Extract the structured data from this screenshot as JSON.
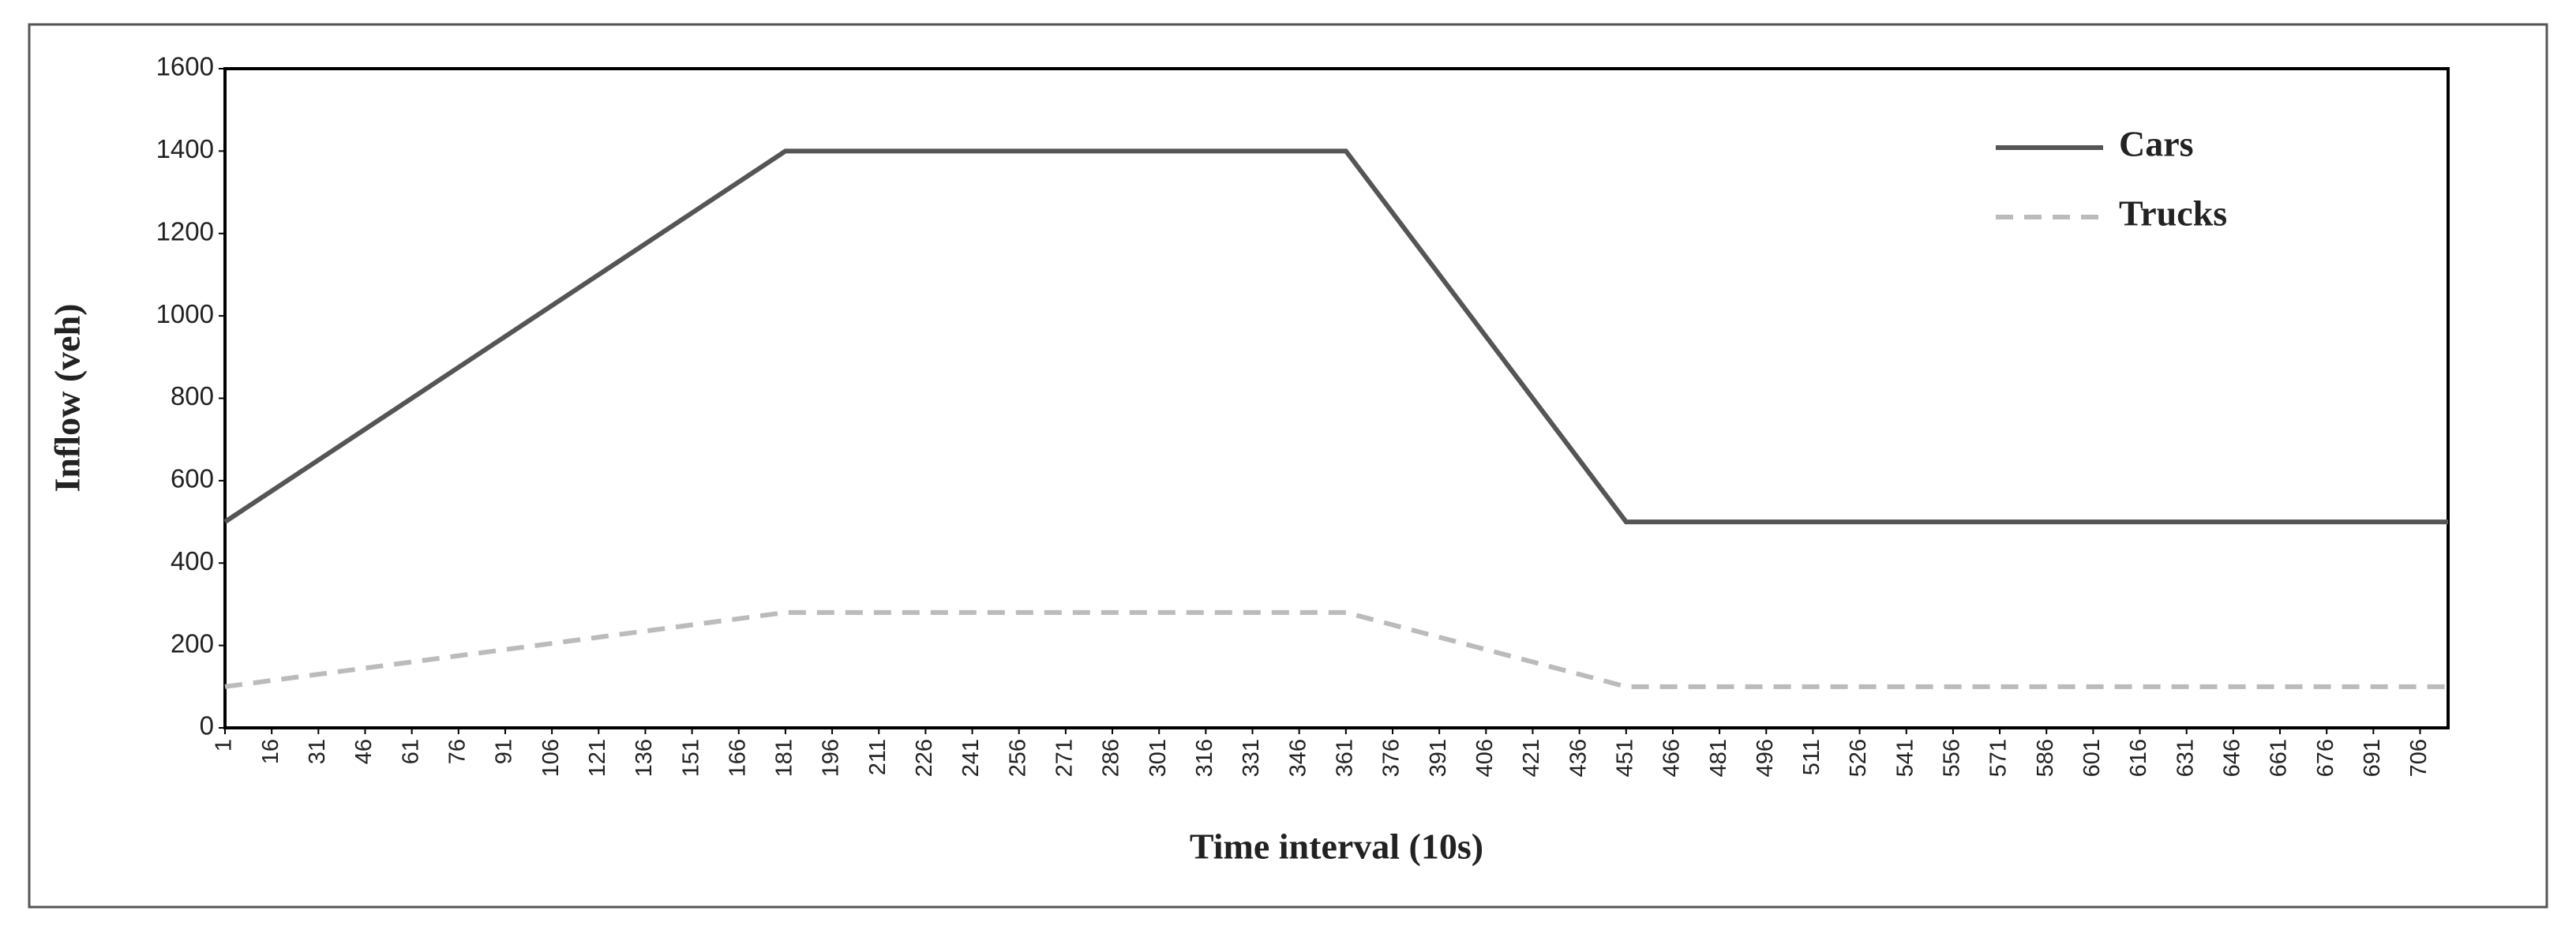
{
  "chart_data": {
    "type": "line",
    "xlabel": "Time interval (10s)",
    "ylabel": "Inflow (veh)",
    "x": [
      1,
      181,
      361,
      451,
      715
    ],
    "series": [
      {
        "name": "Cars",
        "color": "#555555",
        "dash": "solid",
        "values": [
          500,
          1400,
          1400,
          500,
          500
        ]
      },
      {
        "name": "Trucks",
        "color": "#bbbbbb",
        "dash": "dashed",
        "values": [
          100,
          280,
          280,
          100,
          100
        ]
      }
    ],
    "xlim": [
      1,
      715
    ],
    "xticks": [
      1,
      16,
      31,
      46,
      61,
      76,
      91,
      106,
      121,
      136,
      151,
      166,
      181,
      196,
      211,
      226,
      241,
      256,
      271,
      286,
      301,
      316,
      331,
      346,
      361,
      376,
      391,
      406,
      421,
      436,
      451,
      466,
      481,
      496,
      511,
      526,
      541,
      556,
      571,
      586,
      601,
      616,
      631,
      646,
      661,
      676,
      691,
      706
    ],
    "ylim": [
      0,
      1600
    ],
    "yticks": [
      0,
      200,
      400,
      600,
      800,
      1000,
      1200,
      1400,
      1600
    ],
    "grid": false,
    "legend": "upper right"
  }
}
